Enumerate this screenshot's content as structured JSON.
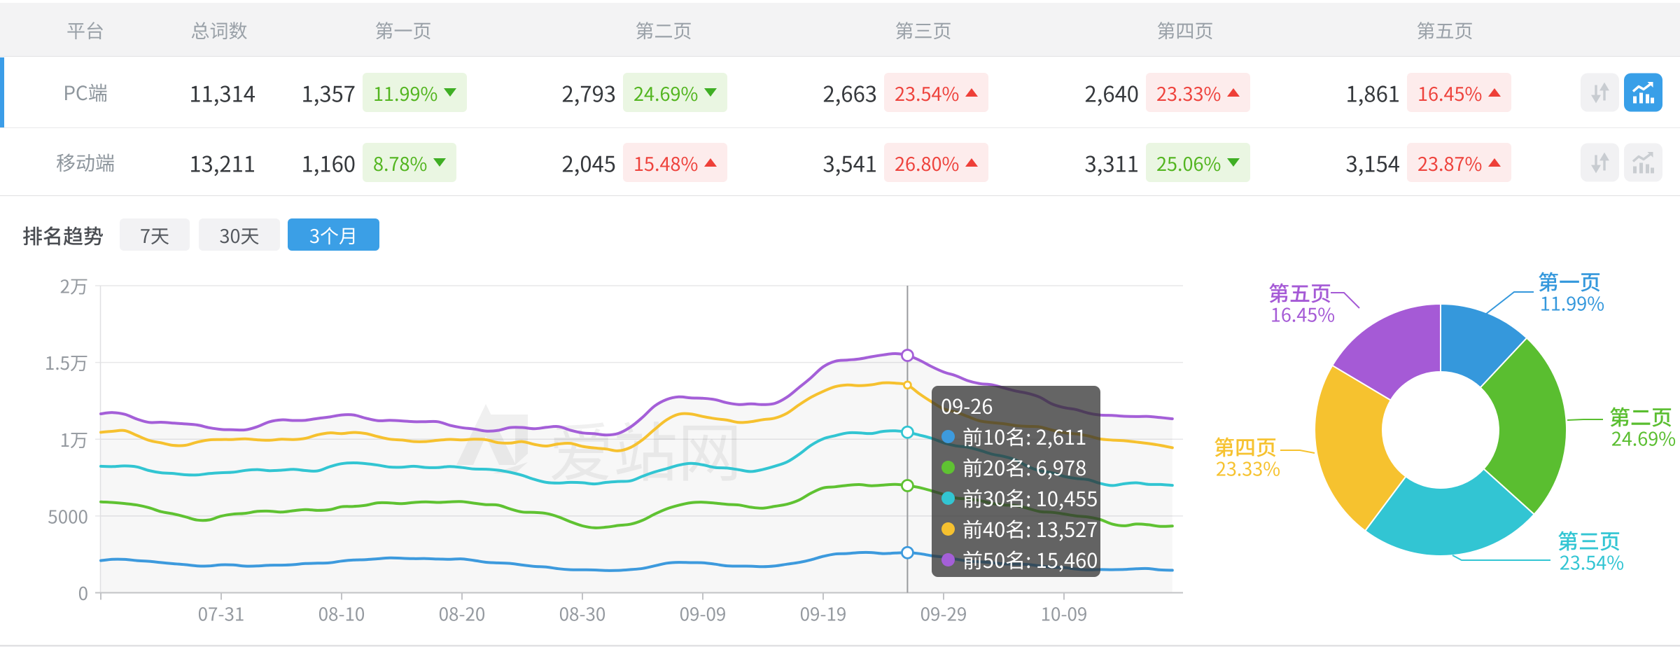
{
  "colors": {
    "accent_blue": "#3b9fe6",
    "up_red": "#ee433d",
    "down_green": "#53b520",
    "badge_red_bg": "#fdecec",
    "badge_green_bg": "#eaf6e2"
  },
  "table": {
    "columns": [
      "平台",
      "总词数",
      "第一页",
      "第二页",
      "第三页",
      "第四页",
      "第五页"
    ],
    "rows": [
      {
        "platform": "PC端",
        "total": "11,314",
        "selected": true,
        "trend_active": true,
        "pages": [
          {
            "count": "1,357",
            "pct": "11.99%",
            "dir": "down"
          },
          {
            "count": "2,793",
            "pct": "24.69%",
            "dir": "down"
          },
          {
            "count": "2,663",
            "pct": "23.54%",
            "dir": "up"
          },
          {
            "count": "2,640",
            "pct": "23.33%",
            "dir": "up"
          },
          {
            "count": "1,861",
            "pct": "16.45%",
            "dir": "up"
          }
        ]
      },
      {
        "platform": "移动端",
        "total": "13,211",
        "selected": false,
        "trend_active": false,
        "pages": [
          {
            "count": "1,160",
            "pct": "8.78%",
            "dir": "down"
          },
          {
            "count": "2,045",
            "pct": "15.48%",
            "dir": "up"
          },
          {
            "count": "3,541",
            "pct": "26.80%",
            "dir": "up"
          },
          {
            "count": "3,311",
            "pct": "25.06%",
            "dir": "down"
          },
          {
            "count": "3,154",
            "pct": "23.87%",
            "dir": "up"
          }
        ]
      }
    ]
  },
  "trend": {
    "label": "排名趋势",
    "ranges": [
      {
        "label": "7天",
        "active": false
      },
      {
        "label": "30天",
        "active": false
      },
      {
        "label": "3个月",
        "active": true
      }
    ]
  },
  "watermark": {
    "text": "爱站网"
  },
  "tooltip": {
    "date": "09-26",
    "items": [
      {
        "label": "前10名",
        "value": "2,611"
      },
      {
        "label": "前20名",
        "value": "6,978"
      },
      {
        "label": "前30名",
        "value": "10,455"
      },
      {
        "label": "前40名",
        "value": "13,527"
      },
      {
        "label": "前50名",
        "value": "15,460"
      }
    ]
  },
  "chart_data": [
    {
      "type": "line",
      "title": "排名趋势",
      "x_daily_start": "07-21",
      "x_daily_end": "10-18",
      "x_tick_labels": [
        "07-31",
        "08-10",
        "08-20",
        "08-30",
        "09-09",
        "09-19",
        "09-29",
        "10-09"
      ],
      "y_tick_labels": [
        "0",
        "5000",
        "1万",
        "1.5万",
        "2万"
      ],
      "ylim": [
        0,
        20000
      ],
      "grid": true,
      "highlight_x": "09-26",
      "highlight_index": 67,
      "series": [
        {
          "name": "前10名",
          "color": "#3d9add",
          "values": [
            2095,
            2174,
            2172,
            2093,
            2047,
            1967,
            1894,
            1830,
            1747,
            1741,
            1818,
            1809,
            1733,
            1741,
            1792,
            1797,
            1827,
            1904,
            1923,
            1951,
            2063,
            2131,
            2156,
            2214,
            2269,
            2245,
            2222,
            2225,
            2196,
            2181,
            2203,
            2104,
            1984,
            1941,
            1910,
            1806,
            1716,
            1672,
            1564,
            1502,
            1494,
            1481,
            1446,
            1456,
            1508,
            1584,
            1751,
            1925,
            1980,
            1960,
            1954,
            1863,
            1751,
            1732,
            1729,
            1695,
            1743,
            1861,
            1973,
            2146,
            2370,
            2520,
            2552,
            2617,
            2620,
            2550,
            2587,
            2611,
            2547,
            2413,
            2316,
            2188,
            2064,
            2015,
            1962,
            1879,
            1862,
            1840,
            1747,
            1666,
            1642,
            1545,
            1491,
            1510,
            1502,
            1515,
            1561,
            1574,
            1485,
            1464
          ]
        },
        {
          "name": "前20名",
          "color": "#5fc232",
          "values": [
            5921,
            5877,
            5809,
            5714,
            5538,
            5283,
            5140,
            4949,
            4734,
            4745,
            4992,
            5123,
            5170,
            5299,
            5313,
            5252,
            5342,
            5418,
            5365,
            5410,
            5599,
            5625,
            5695,
            5856,
            5850,
            5808,
            5880,
            5917,
            5885,
            5919,
            5933,
            5833,
            5740,
            5708,
            5459,
            5257,
            5231,
            5164,
            4945,
            4624,
            4357,
            4227,
            4274,
            4382,
            4465,
            4720,
            5120,
            5463,
            5696,
            5862,
            5898,
            5836,
            5760,
            5713,
            5568,
            5510,
            5634,
            5766,
            6038,
            6491,
            6828,
            6901,
            6997,
            7045,
            6970,
            7014,
            7058,
            6978,
            6850,
            6639,
            6404,
            6175,
            6103,
            6008,
            5820,
            5720,
            5674,
            5492,
            5286,
            5238,
            5130,
            5003,
            4929,
            4770,
            4474,
            4362,
            4475,
            4430,
            4323,
            4344
          ]
        },
        {
          "name": "前30名",
          "color": "#32c5d2",
          "values": [
            8237,
            8219,
            8262,
            8196,
            7960,
            7816,
            7774,
            7686,
            7673,
            7763,
            7818,
            7849,
            7969,
            8021,
            7952,
            7981,
            8039,
            7957,
            7935,
            8203,
            8407,
            8460,
            8412,
            8315,
            8189,
            8176,
            8235,
            8158,
            8152,
            8222,
            8156,
            8059,
            8047,
            7982,
            7843,
            7647,
            7385,
            7187,
            7141,
            7187,
            7165,
            7089,
            7188,
            7247,
            7287,
            7591,
            7868,
            8084,
            8309,
            8423,
            8330,
            8160,
            8123,
            8008,
            7896,
            8033,
            8247,
            8520,
            9018,
            9610,
            10026,
            10230,
            10410,
            10412,
            10372,
            10515,
            10543,
            10455,
            10268,
            10062,
            9771,
            9571,
            9481,
            9277,
            9031,
            8878,
            8645,
            8219,
            7942,
            7815,
            7580,
            7442,
            7366,
            7125,
            6982,
            7098,
            7162,
            7059,
            7050,
            6997
          ]
        },
        {
          "name": "前40名",
          "color": "#f6c12f",
          "values": [
            10449,
            10518,
            10559,
            10245,
            9927,
            9763,
            9602,
            9601,
            9810,
            9958,
            9978,
            9984,
            10025,
            9961,
            9930,
            9996,
            9980,
            10055,
            10285,
            10412,
            10368,
            10441,
            10371,
            10173,
            10003,
            9948,
            9849,
            9849,
            9929,
            9987,
            9955,
            10000,
            9964,
            9776,
            9749,
            9842,
            9666,
            9555,
            9690,
            9731,
            9532,
            9431,
            9358,
            9243,
            9465,
            9967,
            10639,
            11261,
            11628,
            11644,
            11478,
            11341,
            11247,
            11093,
            11141,
            11275,
            11375,
            11696,
            12243,
            12734,
            13118,
            13421,
            13531,
            13491,
            13544,
            13673,
            13649,
            13527,
            12955,
            12437,
            11975,
            11775,
            11482,
            11192,
            11085,
            11011,
            10888,
            10837,
            10802,
            10595,
            10426,
            10345,
            10218,
            10015,
            9945,
            9902,
            9816,
            9720,
            9600,
            9448
          ]
        },
        {
          "name": "前50名",
          "color": "#a45fd8",
          "values": [
            11655,
            11737,
            11620,
            11313,
            11097,
            11107,
            11052,
            10995,
            10929,
            10751,
            10639,
            10617,
            10607,
            10813,
            11134,
            11263,
            11221,
            11235,
            11354,
            11450,
            11579,
            11579,
            11370,
            11211,
            11227,
            11193,
            11137,
            11143,
            11138,
            10907,
            10751,
            10665,
            10530,
            10577,
            10759,
            10764,
            10685,
            10772,
            10823,
            10588,
            10415,
            10356,
            10271,
            10383,
            10796,
            11431,
            12163,
            12588,
            12757,
            12692,
            12667,
            12581,
            12373,
            12258,
            12302,
            12257,
            12336,
            12745,
            13373,
            14014,
            14719,
            15080,
            15156,
            15228,
            15372,
            15495,
            15575,
            15460,
            15144,
            14730,
            14379,
            14139,
            13817,
            13624,
            13546,
            13346,
            13140,
            12987,
            12733,
            12296,
            12059,
            11931,
            11702,
            11570,
            11555,
            11493,
            11474,
            11483,
            11411,
            11331
          ]
        }
      ]
    },
    {
      "type": "pie",
      "donut": true,
      "labels": [
        "第一页",
        "第二页",
        "第三页",
        "第四页",
        "第五页"
      ],
      "values": [
        11.99,
        24.69,
        23.54,
        23.33,
        16.45
      ],
      "display": [
        "11.99%",
        "24.69%",
        "23.54%",
        "23.33%",
        "16.45%"
      ],
      "colors": [
        "#3598dc",
        "#5abe30",
        "#32c5d3",
        "#f6c22f",
        "#a55ad6"
      ]
    }
  ]
}
